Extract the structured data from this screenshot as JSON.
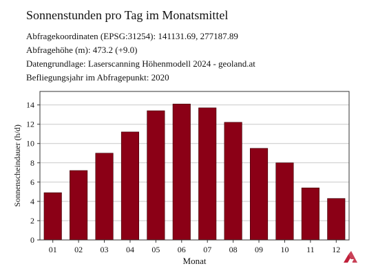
{
  "header": {
    "title": "Sonnenstunden pro Tag im Monatsmittel",
    "lines": [
      "Abfragekoordinaten (EPSG:31254): 141131.69, 277187.89",
      "Abfragehöhe (m): 473.2 (+9.0)",
      "Datengrundlage: Laserscanning Höhenmodell 2024 - geoland.at",
      "Befliegungsjahr im Abfragepunkt: 2020"
    ]
  },
  "chart_data": {
    "type": "bar",
    "title": "Sonnenstunden pro Tag im Monatsmittel",
    "xlabel": "Monat",
    "ylabel": "Sonnenscheindauer (h/d)",
    "categories": [
      "01",
      "02",
      "03",
      "04",
      "05",
      "06",
      "07",
      "08",
      "09",
      "10",
      "11",
      "12"
    ],
    "values": [
      4.9,
      7.2,
      9.0,
      11.2,
      13.4,
      14.1,
      13.7,
      12.2,
      9.5,
      8.0,
      5.4,
      4.3
    ],
    "ylim": [
      0,
      15.4
    ],
    "yticks": [
      0,
      2,
      4,
      6,
      8,
      10,
      12,
      14
    ],
    "grid": true,
    "bar_color": "#8b0016"
  },
  "colors": {
    "bar": "#8b0016",
    "grid": "#c8c8c8",
    "logo": "#c0203a"
  },
  "logo": {
    "icon": "geoland-logo-icon"
  }
}
